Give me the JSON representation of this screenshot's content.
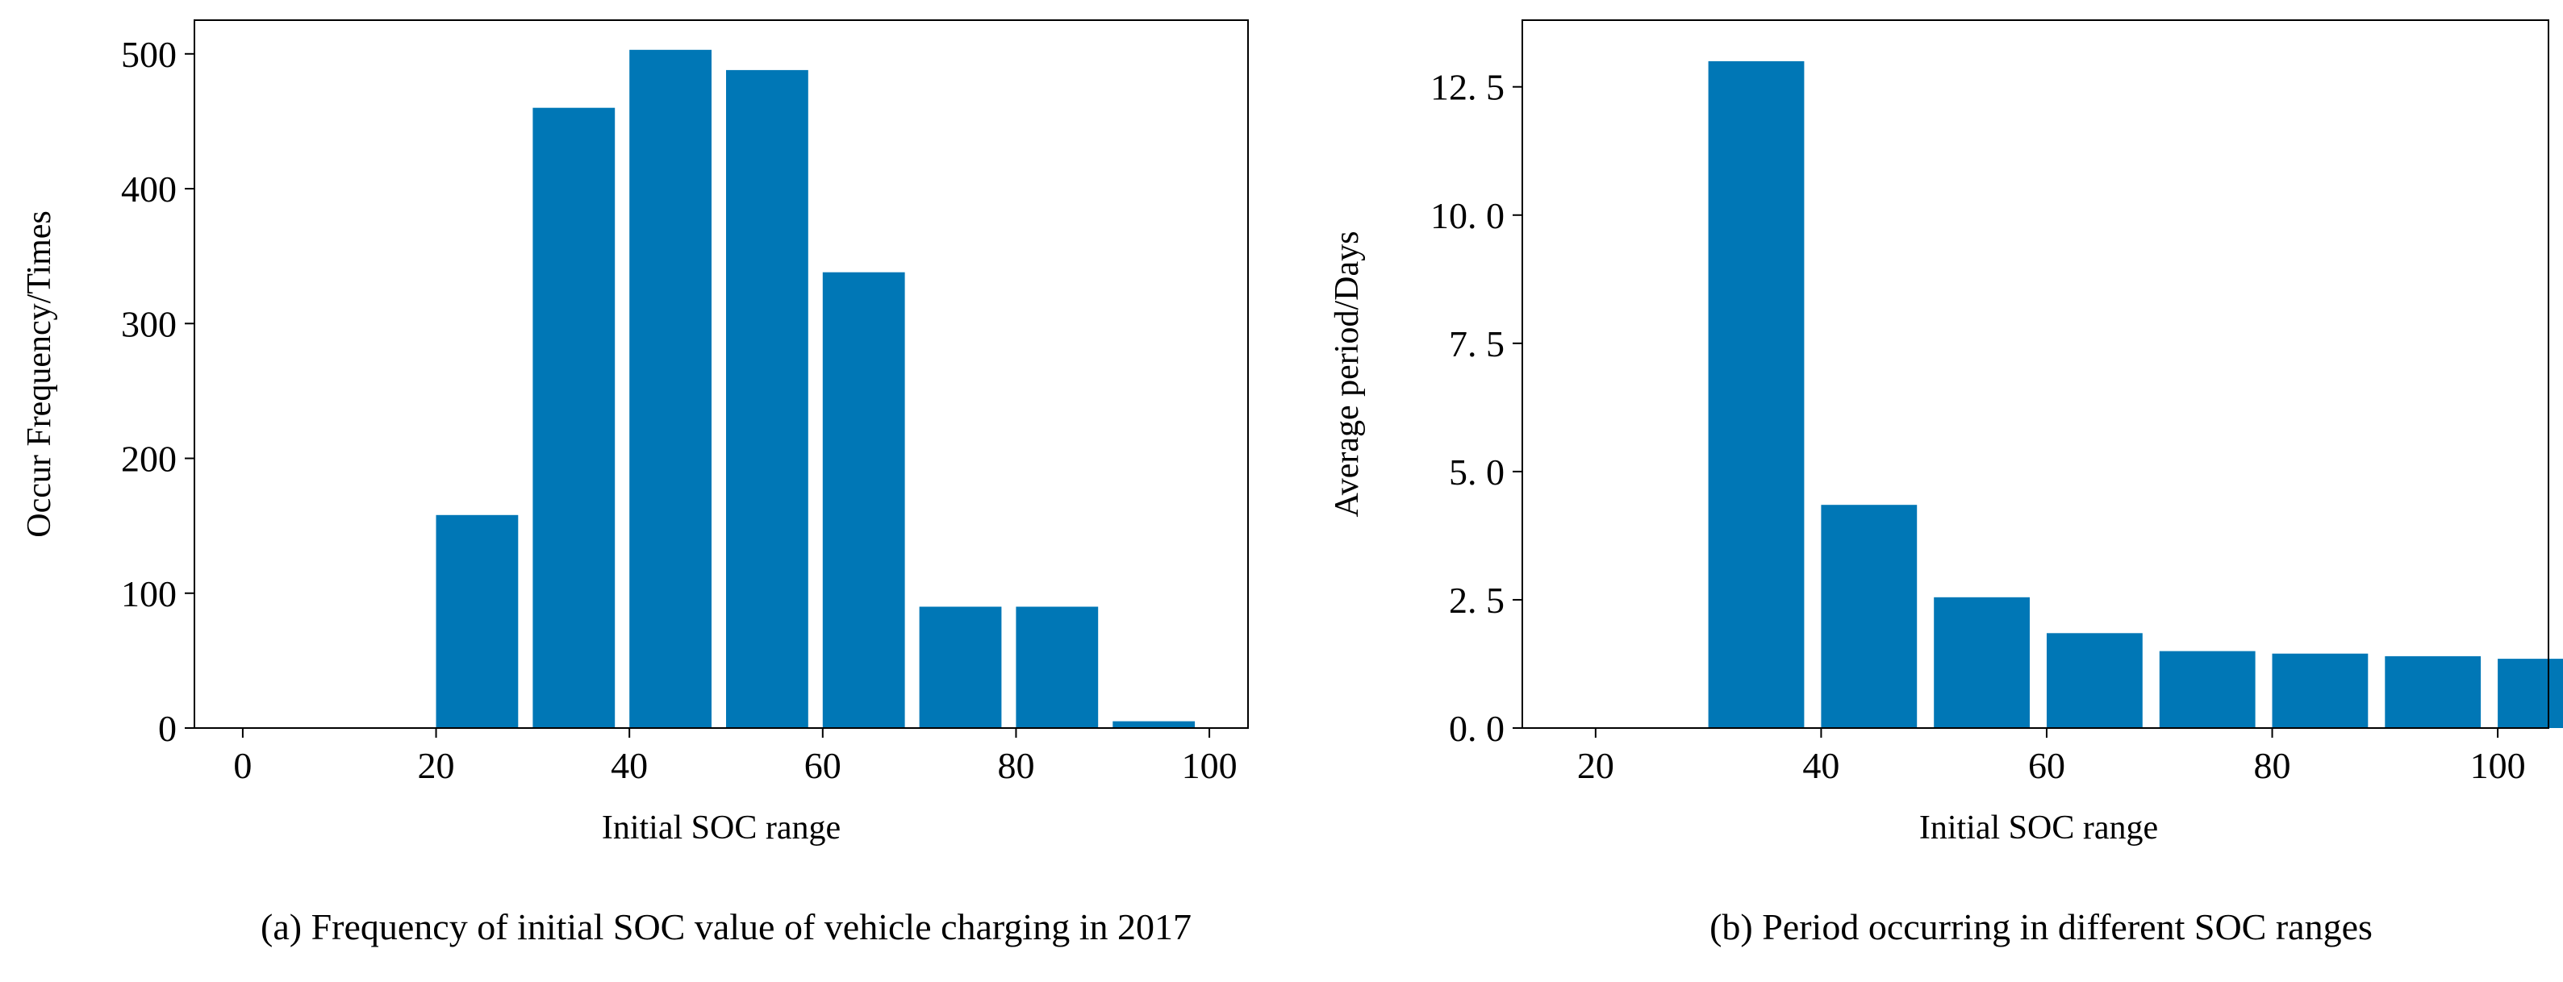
{
  "colors": {
    "bar": "#0077B6",
    "axis": "#000000",
    "background": "#ffffff"
  },
  "chart_data": [
    {
      "type": "bar",
      "panel": "a",
      "title": "",
      "caption": "(a) Frequency of initial SOC value of vehicle charging in 2017",
      "xlabel": "Initial SOC range",
      "ylabel": "Occur Frequency/Times",
      "categories": [
        0,
        10,
        20,
        30,
        40,
        50,
        60,
        70,
        80,
        90
      ],
      "bar_start": [
        0,
        10,
        20,
        30,
        40,
        50,
        60,
        70,
        80,
        90
      ],
      "bar_width_units": 8.5,
      "values": [
        0,
        0,
        158,
        460,
        503,
        488,
        338,
        90,
        90,
        5
      ],
      "xlim": [
        -5,
        104
      ],
      "ylim": [
        0,
        525
      ],
      "xticks": [
        0,
        20,
        40,
        60,
        80,
        100
      ],
      "xtick_labels": [
        "0",
        "20",
        "40",
        "60",
        "80",
        "100"
      ],
      "yticks": [
        0,
        100,
        200,
        300,
        400,
        500
      ],
      "ytick_labels": [
        "0",
        "100",
        "200",
        "300",
        "400",
        "500"
      ],
      "grid": false,
      "legend": "none"
    },
    {
      "type": "bar",
      "panel": "b",
      "title": "",
      "caption": "(b) Period occurring in different SOC ranges",
      "xlabel": "Initial SOC range",
      "ylabel": "Average period/Days",
      "categories": [
        20,
        30,
        40,
        50,
        60,
        70,
        80,
        90,
        100
      ],
      "bar_start": [
        20,
        30,
        40,
        50,
        60,
        70,
        80,
        90,
        100
      ],
      "bar_width_units": 8.5,
      "values": [
        0,
        13.0,
        4.35,
        2.55,
        1.85,
        1.5,
        1.45,
        1.4,
        1.35
      ],
      "xlim": [
        13.5,
        104.5
      ],
      "ylim": [
        0,
        13.8
      ],
      "xticks": [
        20,
        40,
        60,
        80,
        100
      ],
      "xtick_labels": [
        "20",
        "40",
        "60",
        "80",
        "100"
      ],
      "yticks": [
        0,
        2.5,
        5.0,
        7.5,
        10.0,
        12.5
      ],
      "ytick_labels": [
        "0. 0",
        "2. 5",
        "5. 0",
        "7. 5",
        "10. 0",
        "12. 5"
      ],
      "grid": false,
      "legend": "none"
    }
  ]
}
